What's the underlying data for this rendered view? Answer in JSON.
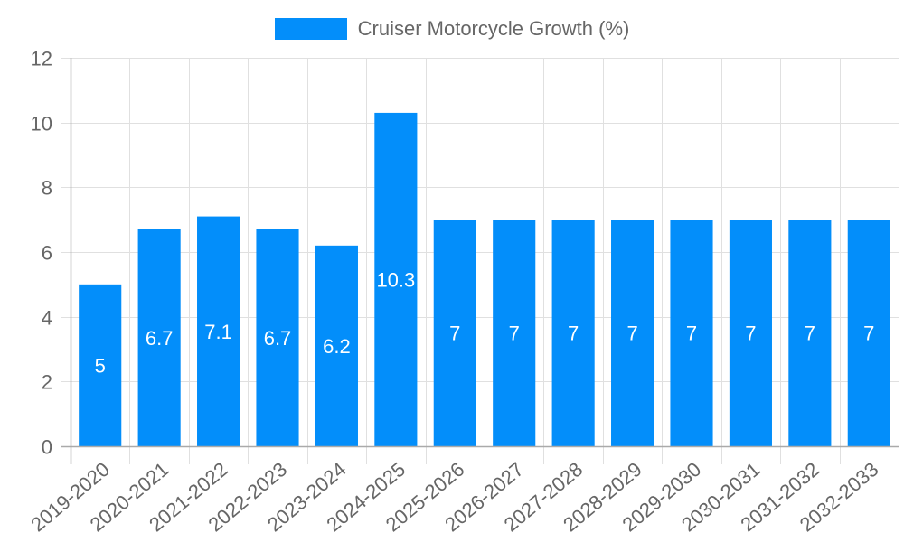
{
  "legend": {
    "label": "Cruiser Motorcycle Growth (%)",
    "color": "#038EFA"
  },
  "colors": {
    "bar": "#038EFA",
    "grid": "#e0e0e0",
    "axis": "#aaaaaa",
    "text": "#666666",
    "bar_label": "#ffffff"
  },
  "chart_data": {
    "type": "bar",
    "title": "",
    "xlabel": "",
    "ylabel": "",
    "categories": [
      "2019-2020",
      "2020-2021",
      "2021-2022",
      "2022-2023",
      "2023-2024",
      "2024-2025",
      "2025-2026",
      "2026-2027",
      "2027-2028",
      "2028-2029",
      "2029-2030",
      "2030-2031",
      "2031-2032",
      "2032-2033"
    ],
    "series": [
      {
        "name": "Cruiser Motorcycle Growth (%)",
        "values": [
          5,
          6.7,
          7.1,
          6.7,
          6.2,
          10.3,
          7,
          7,
          7,
          7,
          7,
          7,
          7,
          7
        ]
      }
    ],
    "data_labels": [
      "5",
      "6.7",
      "7.1",
      "6.7",
      "6.2",
      "10.3",
      "7",
      "7",
      "7",
      "7",
      "7",
      "7",
      "7",
      "7"
    ],
    "ylim": [
      0,
      12
    ],
    "yticks": [
      0,
      2,
      4,
      6,
      8,
      10,
      12
    ],
    "grid": true,
    "legend_position": "top"
  }
}
